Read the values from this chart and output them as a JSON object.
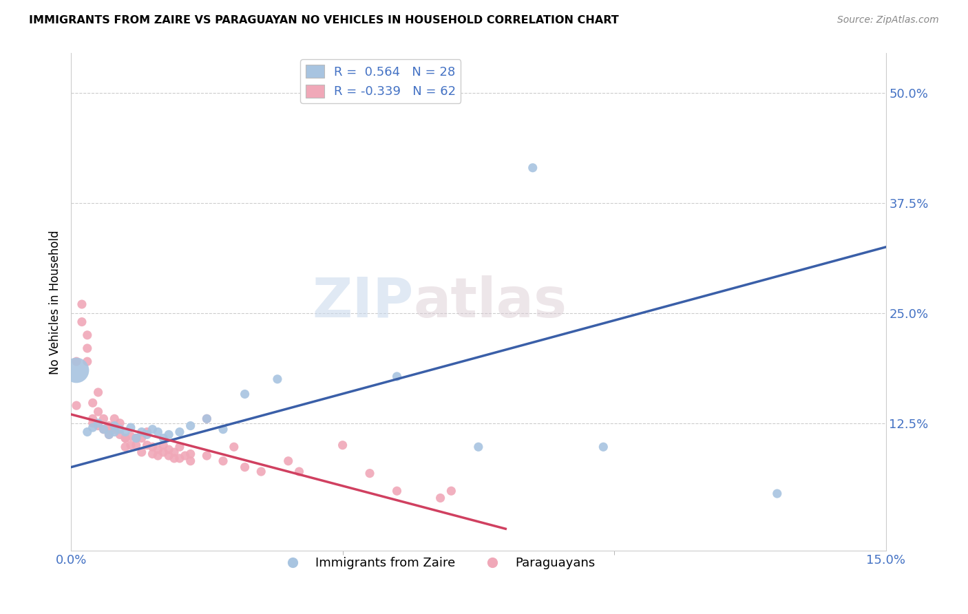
{
  "title": "IMMIGRANTS FROM ZAIRE VS PARAGUAYAN NO VEHICLES IN HOUSEHOLD CORRELATION CHART",
  "source": "Source: ZipAtlas.com",
  "ylabel": "No Vehicles in Household",
  "yticks_labels": [
    "50.0%",
    "37.5%",
    "25.0%",
    "12.5%"
  ],
  "ytick_vals": [
    0.5,
    0.375,
    0.25,
    0.125
  ],
  "xlim": [
    0.0,
    0.15
  ],
  "ylim": [
    -0.02,
    0.545
  ],
  "legend_blue_r": "0.564",
  "legend_blue_n": "28",
  "legend_pink_r": "-0.339",
  "legend_pink_n": "62",
  "blue_color": "#a8c4e0",
  "pink_color": "#f0a8b8",
  "blue_line_color": "#3a5fa8",
  "pink_line_color": "#d04060",
  "watermark_zip": "ZIP",
  "watermark_atlas": "atlas",
  "blue_line_x": [
    0.0,
    0.15
  ],
  "blue_line_y": [
    0.075,
    0.325
  ],
  "pink_line_x": [
    0.0,
    0.08
  ],
  "pink_line_y": [
    0.135,
    0.005
  ],
  "blue_scatter": [
    [
      0.003,
      0.115
    ],
    [
      0.004,
      0.12
    ],
    [
      0.005,
      0.125
    ],
    [
      0.006,
      0.118
    ],
    [
      0.007,
      0.112
    ],
    [
      0.008,
      0.115
    ],
    [
      0.008,
      0.122
    ],
    [
      0.009,
      0.118
    ],
    [
      0.01,
      0.115
    ],
    [
      0.011,
      0.12
    ],
    [
      0.012,
      0.108
    ],
    [
      0.013,
      0.115
    ],
    [
      0.014,
      0.112
    ],
    [
      0.015,
      0.118
    ],
    [
      0.016,
      0.115
    ],
    [
      0.017,
      0.108
    ],
    [
      0.018,
      0.112
    ],
    [
      0.02,
      0.115
    ],
    [
      0.022,
      0.122
    ],
    [
      0.025,
      0.13
    ],
    [
      0.028,
      0.118
    ],
    [
      0.032,
      0.158
    ],
    [
      0.038,
      0.175
    ],
    [
      0.06,
      0.178
    ],
    [
      0.075,
      0.098
    ],
    [
      0.085,
      0.415
    ],
    [
      0.098,
      0.098
    ],
    [
      0.13,
      0.045
    ]
  ],
  "big_blue_point": [
    0.001,
    0.185
  ],
  "big_blue_size": 700,
  "pink_scatter": [
    [
      0.001,
      0.145
    ],
    [
      0.001,
      0.195
    ],
    [
      0.002,
      0.26
    ],
    [
      0.002,
      0.24
    ],
    [
      0.003,
      0.21
    ],
    [
      0.003,
      0.195
    ],
    [
      0.003,
      0.225
    ],
    [
      0.004,
      0.148
    ],
    [
      0.004,
      0.13
    ],
    [
      0.004,
      0.125
    ],
    [
      0.005,
      0.138
    ],
    [
      0.005,
      0.16
    ],
    [
      0.005,
      0.122
    ],
    [
      0.006,
      0.13
    ],
    [
      0.006,
      0.118
    ],
    [
      0.007,
      0.118
    ],
    [
      0.007,
      0.122
    ],
    [
      0.007,
      0.112
    ],
    [
      0.008,
      0.13
    ],
    [
      0.008,
      0.12
    ],
    [
      0.008,
      0.118
    ],
    [
      0.009,
      0.125
    ],
    [
      0.009,
      0.112
    ],
    [
      0.01,
      0.108
    ],
    [
      0.01,
      0.098
    ],
    [
      0.01,
      0.108
    ],
    [
      0.011,
      0.1
    ],
    [
      0.011,
      0.11
    ],
    [
      0.012,
      0.108
    ],
    [
      0.012,
      0.1
    ],
    [
      0.013,
      0.092
    ],
    [
      0.013,
      0.108
    ],
    [
      0.014,
      0.115
    ],
    [
      0.014,
      0.1
    ],
    [
      0.015,
      0.098
    ],
    [
      0.015,
      0.09
    ],
    [
      0.016,
      0.095
    ],
    [
      0.016,
      0.088
    ],
    [
      0.017,
      0.1
    ],
    [
      0.017,
      0.092
    ],
    [
      0.018,
      0.095
    ],
    [
      0.018,
      0.088
    ],
    [
      0.019,
      0.085
    ],
    [
      0.019,
      0.092
    ],
    [
      0.02,
      0.098
    ],
    [
      0.02,
      0.085
    ],
    [
      0.021,
      0.088
    ],
    [
      0.022,
      0.082
    ],
    [
      0.022,
      0.09
    ],
    [
      0.025,
      0.13
    ],
    [
      0.025,
      0.088
    ],
    [
      0.028,
      0.082
    ],
    [
      0.03,
      0.098
    ],
    [
      0.032,
      0.075
    ],
    [
      0.035,
      0.07
    ],
    [
      0.04,
      0.082
    ],
    [
      0.042,
      0.07
    ],
    [
      0.05,
      0.1
    ],
    [
      0.055,
      0.068
    ],
    [
      0.06,
      0.048
    ],
    [
      0.068,
      0.04
    ],
    [
      0.07,
      0.048
    ]
  ]
}
